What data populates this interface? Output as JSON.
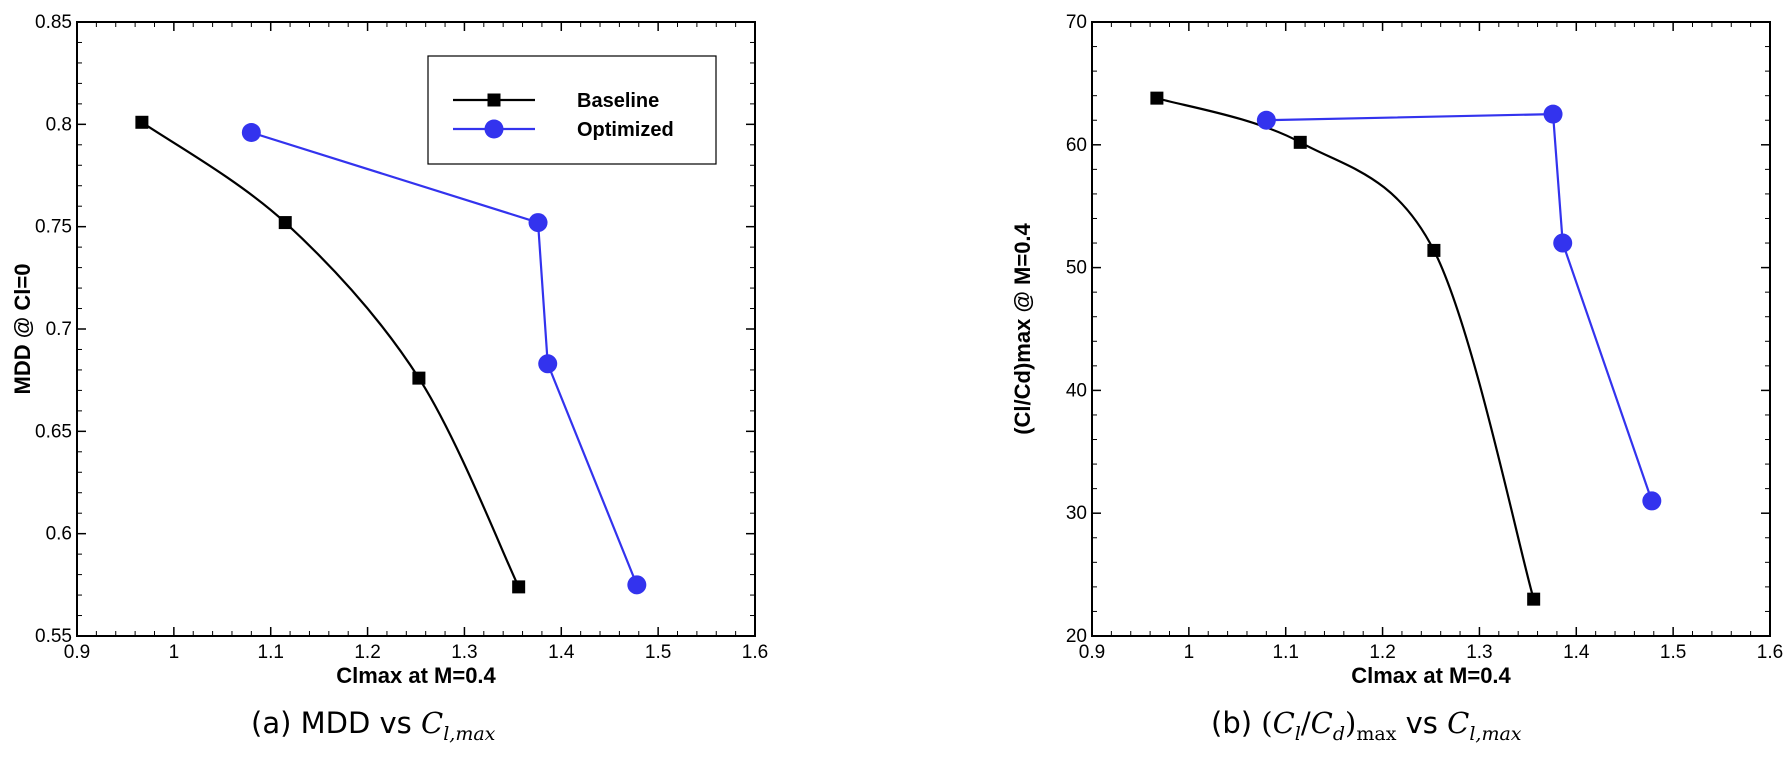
{
  "captions": {
    "a": {
      "prefix": "(a) MDD vs ",
      "math_letter": "C",
      "sub": "l,max"
    },
    "b": {
      "prefix": "(b) ",
      "open": "(",
      "num_letter": "C",
      "num_sub": "l",
      "slash": "/",
      "den_letter": "C",
      "den_sub": "d",
      "close": ")",
      "max_sub": "max",
      "vs": " vs ",
      "math_letter": "C",
      "sub": "l,max"
    }
  },
  "chart_data": [
    {
      "type": "line",
      "xlabel": "Clmax at M=0.4",
      "ylabel": "MDD @ Cl=0",
      "xlim": [
        0.9,
        1.6
      ],
      "ylim": [
        0.55,
        0.85
      ],
      "xticks": [
        "0.9",
        "1",
        "1.1",
        "1.2",
        "1.3",
        "1.4",
        "1.5",
        "1.6"
      ],
      "yticks": [
        "0.55",
        "0.6",
        "0.65",
        "0.7",
        "0.75",
        "0.8",
        "0.85"
      ],
      "legend": {
        "position": "top-right",
        "entries": [
          "Baseline",
          "Optimized"
        ]
      },
      "series": [
        {
          "name": "Baseline",
          "color": "#000000",
          "marker": "square",
          "smooth": true,
          "x": [
            0.967,
            1.115,
            1.253,
            1.356
          ],
          "y": [
            0.801,
            0.752,
            0.676,
            0.574
          ]
        },
        {
          "name": "Optimized",
          "color": "#3333ee",
          "marker": "circle",
          "smooth": false,
          "x": [
            1.08,
            1.376,
            1.386,
            1.478
          ],
          "y": [
            0.796,
            0.752,
            0.683,
            0.575
          ]
        }
      ]
    },
    {
      "type": "line",
      "xlabel": "Clmax at M=0.4",
      "ylabel": "(Cl/Cd)max @ M=0.4",
      "xlim": [
        0.9,
        1.6
      ],
      "ylim": [
        20,
        70
      ],
      "xticks": [
        "0.9",
        "1",
        "1.1",
        "1.2",
        "1.3",
        "1.4",
        "1.5",
        "1.6"
      ],
      "yticks": [
        "20",
        "30",
        "40",
        "50",
        "60",
        "70"
      ],
      "series": [
        {
          "name": "Baseline",
          "color": "#000000",
          "marker": "square",
          "smooth": true,
          "x": [
            0.967,
            1.115,
            1.253,
            1.356
          ],
          "y": [
            63.8,
            60.2,
            51.4,
            23.0
          ]
        },
        {
          "name": "Optimized",
          "color": "#3333ee",
          "marker": "circle",
          "smooth": false,
          "x": [
            1.08,
            1.376,
            1.386,
            1.478
          ],
          "y": [
            62.0,
            62.5,
            52.0,
            31.0
          ]
        }
      ]
    }
  ]
}
